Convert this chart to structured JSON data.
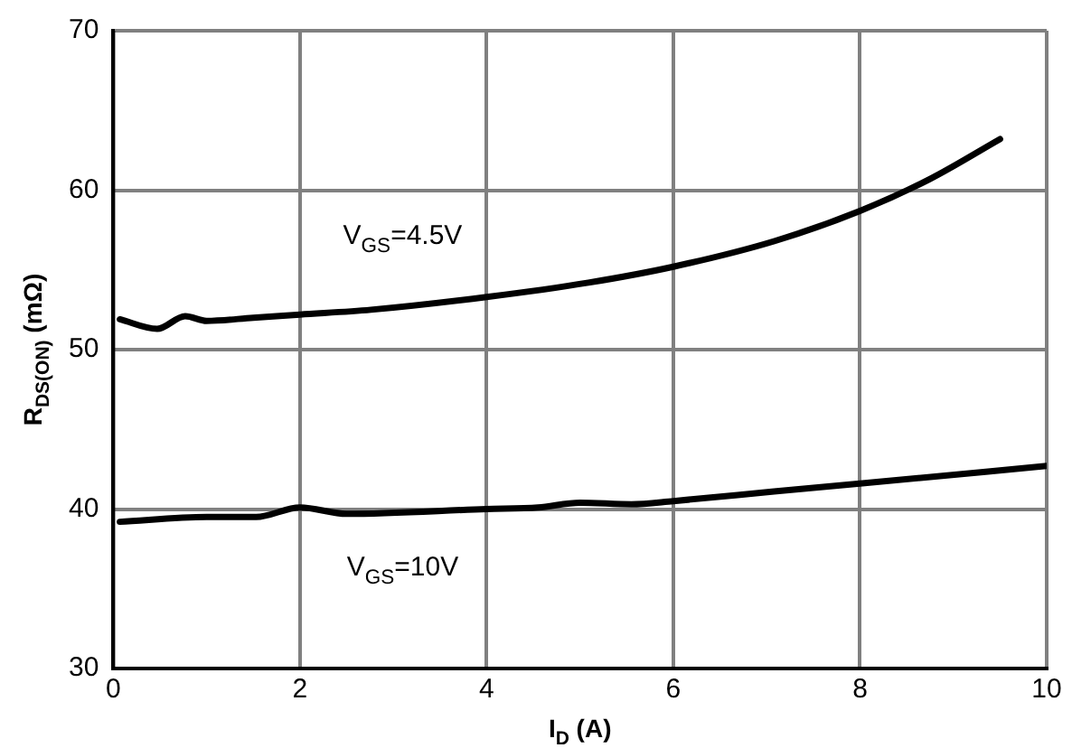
{
  "chart_data": {
    "type": "line",
    "xlabel": "I$_{D}$ (A)",
    "ylabel": "R$_{DS(ON)}$ (mΩ)",
    "xlim": [
      0,
      10
    ],
    "xticks": [
      0,
      2,
      4,
      6,
      8,
      10
    ],
    "ylim": [
      30,
      70
    ],
    "yticks": [
      30,
      40,
      50,
      60,
      70
    ],
    "grid": true,
    "legend": false,
    "marker": "none",
    "line_style": "solid",
    "series": [
      {
        "color": "#000000",
        "x": [
          0.07,
          0.47,
          0.77,
          1.0,
          1.5,
          2.0,
          2.76,
          4.0,
          5.09,
          6.0,
          7.08,
          8.0,
          8.75,
          9.5
        ],
        "values": [
          51.9,
          51.3,
          52.1,
          51.8,
          52.0,
          52.2,
          52.5,
          53.3,
          54.2,
          55.2,
          56.8,
          58.7,
          60.7,
          63.2
        ]
      },
      {
        "color": "#000000",
        "x": [
          0.07,
          1.0,
          1.53,
          2.0,
          2.5,
          4.0,
          4.55,
          5.0,
          5.55,
          6.0,
          7.08,
          8.0,
          10.0
        ],
        "values": [
          39.2,
          39.5,
          39.5,
          40.1,
          39.7,
          40.0,
          40.1,
          40.4,
          40.3,
          40.5,
          41.1,
          41.6,
          42.7
        ]
      }
    ],
    "annotations": [
      "V$_{GS}$=4.5V",
      "V$_{GS}$=10V"
    ]
  }
}
